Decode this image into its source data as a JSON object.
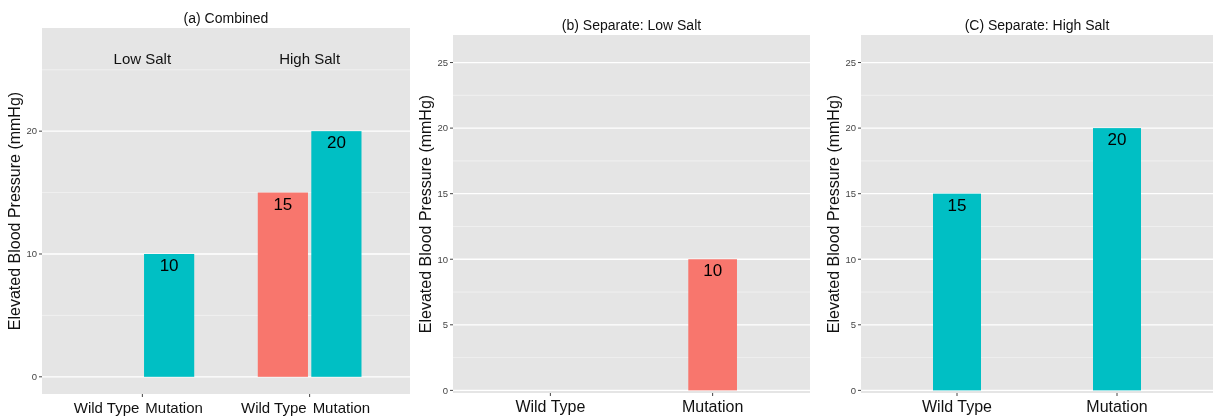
{
  "chart_data": [
    {
      "type": "bar",
      "title": "(a) Combined",
      "ylabel": "Elevated Blood Pressure (mmHg)",
      "categories": [
        "Wild Type",
        "Mutation",
        "Wild Type",
        "Mutation"
      ],
      "values": [
        0,
        10,
        15,
        20
      ],
      "colors": [
        "#f8766d",
        "#00bfc4",
        "#f8766d",
        "#00bfc4"
      ],
      "value_labels": [
        null,
        "10",
        "15",
        "20"
      ],
      "ylim": [
        -1.4,
        28.4
      ],
      "yticks": [
        0,
        10,
        20
      ],
      "grid": true,
      "annotations": [
        "Low Salt",
        "High Salt"
      ]
    },
    {
      "type": "bar",
      "title": "(b) Separate: Low Salt",
      "ylabel": "Elevated Blood Pressure (mmHg)",
      "categories": [
        "Wild Type",
        "Mutation"
      ],
      "values": [
        0,
        10
      ],
      "colors": [
        "#f8766d",
        "#f8766d"
      ],
      "value_labels": [
        null,
        "10"
      ],
      "ylim": [
        -0.2,
        27.1
      ],
      "yticks": [
        0,
        5,
        10,
        15,
        20,
        25
      ],
      "grid": true
    },
    {
      "type": "bar",
      "title": "(C) Separate: High Salt",
      "ylabel": "Elevated Blood Pressure (mmHg)",
      "categories": [
        "Wild Type",
        "Mutation"
      ],
      "values": [
        15,
        20
      ],
      "colors": [
        "#00bfc4",
        "#00bfc4"
      ],
      "value_labels": [
        "15",
        "20"
      ],
      "ylim": [
        -0.2,
        27.1
      ],
      "yticks": [
        0,
        5,
        10,
        15,
        20,
        25
      ],
      "grid": true
    }
  ]
}
